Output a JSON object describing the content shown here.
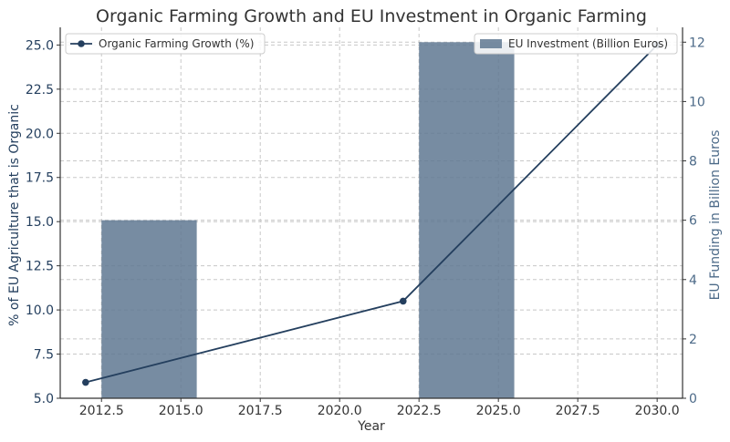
{
  "chart_data": {
    "type": "bar+line",
    "title": "Organic Farming Growth and EU Investment in Organic Farming",
    "xlabel": "Year",
    "ylabel_left": "% of EU Agriculture that is Organic",
    "ylabel_right": "EU Funding in Billion Euros",
    "xlim": [
      2011.2,
      2030.8
    ],
    "ylim_left": [
      5.0,
      26.0
    ],
    "ylim_right": [
      0,
      12.5
    ],
    "x_ticks": [
      "2012.5",
      "2015.0",
      "2017.5",
      "2020.0",
      "2022.5",
      "2025.0",
      "2027.5",
      "2030.0"
    ],
    "x_tick_values": [
      2012.5,
      2015.0,
      2017.5,
      2020.0,
      2022.5,
      2025.0,
      2027.5,
      2030.0
    ],
    "y_left_ticks": [
      "5.0",
      "7.5",
      "10.0",
      "12.5",
      "15.0",
      "17.5",
      "20.0",
      "22.5",
      "25.0"
    ],
    "y_left_tick_values": [
      5.0,
      7.5,
      10.0,
      12.5,
      15.0,
      17.5,
      20.0,
      22.5,
      25.0
    ],
    "y_right_ticks": [
      "0",
      "2",
      "4",
      "6",
      "8",
      "10",
      "12"
    ],
    "y_right_tick_values": [
      0,
      2,
      4,
      6,
      8,
      10,
      12
    ],
    "grid": true,
    "line_series": {
      "name": "Organic Farming Growth (%)",
      "color": "#243f5e",
      "x": [
        2012,
        2022,
        2030
      ],
      "y": [
        5.9,
        10.5,
        25.0
      ]
    },
    "bar_series": {
      "name": "EU Investment (Billion Euros)",
      "color": "#5f7892",
      "x": [
        2014,
        2024
      ],
      "values": [
        6,
        12
      ],
      "bar_width_years": 3
    },
    "legend_line_placement": "top-left",
    "legend_bar_placement": "top-right",
    "left_axis_color": "#243f5e",
    "right_axis_color": "#4c6a88"
  }
}
